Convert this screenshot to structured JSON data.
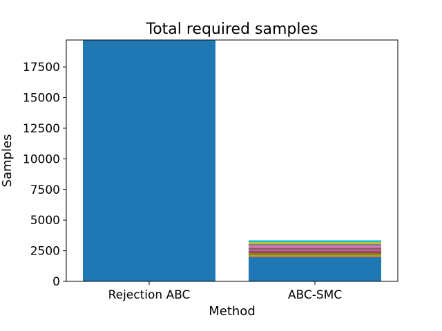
{
  "chart_data": {
    "type": "bar",
    "title": "Total required samples",
    "xlabel": "Method",
    "ylabel": "Samples",
    "ylim": [
      0,
      19700
    ],
    "yticks": [
      0,
      2500,
      5000,
      7500,
      10000,
      12500,
      15000,
      17500
    ],
    "grid": false,
    "stacked": true,
    "categories": [
      "Rejection ABC",
      "ABC-SMC"
    ],
    "series": [
      {
        "values": [
          19700,
          2000
        ],
        "color": "#1f77b4"
      },
      {
        "values": [
          0,
          150
        ],
        "color": "#ff7f0e"
      },
      {
        "values": [
          0,
          150
        ],
        "color": "#2ca02c"
      },
      {
        "values": [
          0,
          150
        ],
        "color": "#d62728"
      },
      {
        "values": [
          0,
          150
        ],
        "color": "#9467bd"
      },
      {
        "values": [
          0,
          150
        ],
        "color": "#8c564b"
      },
      {
        "values": [
          0,
          150
        ],
        "color": "#e377c2"
      },
      {
        "values": [
          0,
          150
        ],
        "color": "#7f7f7f"
      },
      {
        "values": [
          0,
          150
        ],
        "color": "#bcbd22"
      },
      {
        "values": [
          0,
          150
        ],
        "color": "#17becf"
      }
    ]
  }
}
